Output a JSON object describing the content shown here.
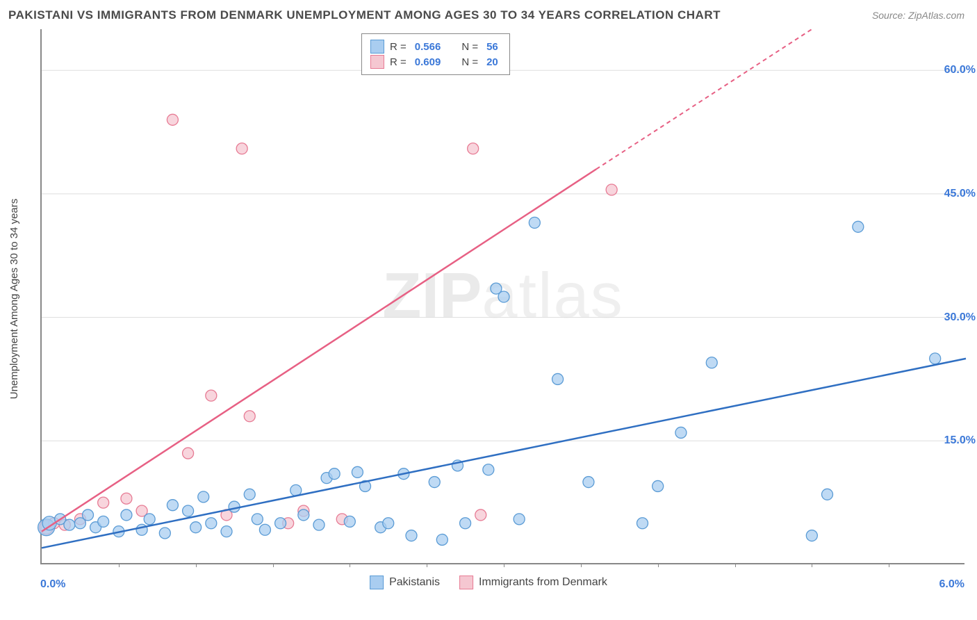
{
  "title": "PAKISTANI VS IMMIGRANTS FROM DENMARK UNEMPLOYMENT AMONG AGES 30 TO 34 YEARS CORRELATION CHART",
  "source": "Source: ZipAtlas.com",
  "ylabel": "Unemployment Among Ages 30 to 34 years",
  "watermark_bold": "ZIP",
  "watermark_thin": "atlas",
  "chart": {
    "type": "scatter",
    "xlim": [
      0.0,
      6.0
    ],
    "ylim": [
      0.0,
      65.0
    ],
    "x_ticks_label_left": "0.0%",
    "x_ticks_label_right": "6.0%",
    "y_gridlines": [
      15.0,
      30.0,
      45.0,
      60.0
    ],
    "y_tick_labels": [
      "15.0%",
      "30.0%",
      "45.0%",
      "60.0%"
    ],
    "y_tick_color": "#3b78d8",
    "grid_color": "#dddddd",
    "axis_color": "#888888",
    "background_color": "#ffffff",
    "x_minor_ticks": [
      0.5,
      1.0,
      1.5,
      2.0,
      2.5,
      3.0,
      3.5,
      4.0,
      4.5,
      5.0,
      5.5
    ]
  },
  "series": {
    "pakistanis": {
      "label": "Pakistanis",
      "color_fill": "#a9cdf0",
      "color_stroke": "#5a9bd5",
      "line_color": "#2f6fc2",
      "R": "0.566",
      "N": "56",
      "trend": {
        "x1": 0.0,
        "y1": 2.0,
        "x2": 6.0,
        "y2": 25.0
      },
      "points": [
        {
          "x": 0.03,
          "y": 4.5,
          "r": 12
        },
        {
          "x": 0.05,
          "y": 5.0,
          "r": 10
        },
        {
          "x": 0.12,
          "y": 5.5,
          "r": 8
        },
        {
          "x": 0.18,
          "y": 4.8,
          "r": 8
        },
        {
          "x": 0.25,
          "y": 5.0,
          "r": 8
        },
        {
          "x": 0.3,
          "y": 6.0,
          "r": 8
        },
        {
          "x": 0.35,
          "y": 4.5,
          "r": 8
        },
        {
          "x": 0.4,
          "y": 5.2,
          "r": 8
        },
        {
          "x": 0.5,
          "y": 4.0,
          "r": 8
        },
        {
          "x": 0.55,
          "y": 6.0,
          "r": 8
        },
        {
          "x": 0.65,
          "y": 4.2,
          "r": 8
        },
        {
          "x": 0.7,
          "y": 5.5,
          "r": 8
        },
        {
          "x": 0.8,
          "y": 3.8,
          "r": 8
        },
        {
          "x": 0.85,
          "y": 7.2,
          "r": 8
        },
        {
          "x": 0.95,
          "y": 6.5,
          "r": 8
        },
        {
          "x": 1.0,
          "y": 4.5,
          "r": 8
        },
        {
          "x": 1.05,
          "y": 8.2,
          "r": 8
        },
        {
          "x": 1.1,
          "y": 5.0,
          "r": 8
        },
        {
          "x": 1.2,
          "y": 4.0,
          "r": 8
        },
        {
          "x": 1.25,
          "y": 7.0,
          "r": 8
        },
        {
          "x": 1.35,
          "y": 8.5,
          "r": 8
        },
        {
          "x": 1.4,
          "y": 5.5,
          "r": 8
        },
        {
          "x": 1.45,
          "y": 4.2,
          "r": 8
        },
        {
          "x": 1.55,
          "y": 5.0,
          "r": 8
        },
        {
          "x": 1.65,
          "y": 9.0,
          "r": 8
        },
        {
          "x": 1.7,
          "y": 6.0,
          "r": 8
        },
        {
          "x": 1.8,
          "y": 4.8,
          "r": 8
        },
        {
          "x": 1.85,
          "y": 10.5,
          "r": 8
        },
        {
          "x": 1.9,
          "y": 11.0,
          "r": 8
        },
        {
          "x": 2.0,
          "y": 5.2,
          "r": 8
        },
        {
          "x": 2.05,
          "y": 11.2,
          "r": 8
        },
        {
          "x": 2.1,
          "y": 9.5,
          "r": 8
        },
        {
          "x": 2.2,
          "y": 4.5,
          "r": 8
        },
        {
          "x": 2.25,
          "y": 5.0,
          "r": 8
        },
        {
          "x": 2.35,
          "y": 11.0,
          "r": 8
        },
        {
          "x": 2.4,
          "y": 3.5,
          "r": 8
        },
        {
          "x": 2.55,
          "y": 10.0,
          "r": 8
        },
        {
          "x": 2.6,
          "y": 3.0,
          "r": 8
        },
        {
          "x": 2.7,
          "y": 12.0,
          "r": 8
        },
        {
          "x": 2.75,
          "y": 5.0,
          "r": 8
        },
        {
          "x": 2.9,
          "y": 11.5,
          "r": 8
        },
        {
          "x": 2.95,
          "y": 33.5,
          "r": 8
        },
        {
          "x": 3.0,
          "y": 32.5,
          "r": 8
        },
        {
          "x": 3.1,
          "y": 5.5,
          "r": 8
        },
        {
          "x": 3.2,
          "y": 41.5,
          "r": 8
        },
        {
          "x": 3.35,
          "y": 22.5,
          "r": 8
        },
        {
          "x": 3.55,
          "y": 10.0,
          "r": 8
        },
        {
          "x": 3.9,
          "y": 5.0,
          "r": 8
        },
        {
          "x": 4.0,
          "y": 9.5,
          "r": 8
        },
        {
          "x": 4.15,
          "y": 16.0,
          "r": 8
        },
        {
          "x": 4.35,
          "y": 24.5,
          "r": 8
        },
        {
          "x": 5.0,
          "y": 3.5,
          "r": 8
        },
        {
          "x": 5.1,
          "y": 8.5,
          "r": 8
        },
        {
          "x": 5.3,
          "y": 41.0,
          "r": 8
        },
        {
          "x": 5.8,
          "y": 25.0,
          "r": 8
        }
      ]
    },
    "denmark": {
      "label": "Immigrants from Denmark",
      "color_fill": "#f5c7d1",
      "color_stroke": "#e77b94",
      "line_color": "#e76084",
      "R": "0.609",
      "N": "20",
      "trend_solid": {
        "x1": 0.0,
        "y1": 4.0,
        "x2": 3.6,
        "y2": 48.0
      },
      "trend_dashed": {
        "x1": 3.6,
        "y1": 48.0,
        "x2": 5.0,
        "y2": 65.0
      },
      "points": [
        {
          "x": 0.03,
          "y": 4.5,
          "r": 10
        },
        {
          "x": 0.08,
          "y": 5.0,
          "r": 8
        },
        {
          "x": 0.15,
          "y": 4.8,
          "r": 8
        },
        {
          "x": 0.25,
          "y": 5.5,
          "r": 8
        },
        {
          "x": 0.4,
          "y": 7.5,
          "r": 8
        },
        {
          "x": 0.55,
          "y": 8.0,
          "r": 8
        },
        {
          "x": 0.65,
          "y": 6.5,
          "r": 8
        },
        {
          "x": 0.85,
          "y": 54.0,
          "r": 8
        },
        {
          "x": 0.95,
          "y": 13.5,
          "r": 8
        },
        {
          "x": 1.1,
          "y": 20.5,
          "r": 8
        },
        {
          "x": 1.2,
          "y": 6.0,
          "r": 8
        },
        {
          "x": 1.3,
          "y": 50.5,
          "r": 8
        },
        {
          "x": 1.35,
          "y": 18.0,
          "r": 8
        },
        {
          "x": 1.6,
          "y": 5.0,
          "r": 8
        },
        {
          "x": 1.7,
          "y": 6.5,
          "r": 8
        },
        {
          "x": 1.95,
          "y": 5.5,
          "r": 8
        },
        {
          "x": 2.8,
          "y": 50.5,
          "r": 8
        },
        {
          "x": 2.85,
          "y": 6.0,
          "r": 8
        },
        {
          "x": 3.7,
          "y": 45.5,
          "r": 8
        }
      ]
    }
  },
  "legend_top": {
    "r_label": "R =",
    "n_label": "N ="
  }
}
